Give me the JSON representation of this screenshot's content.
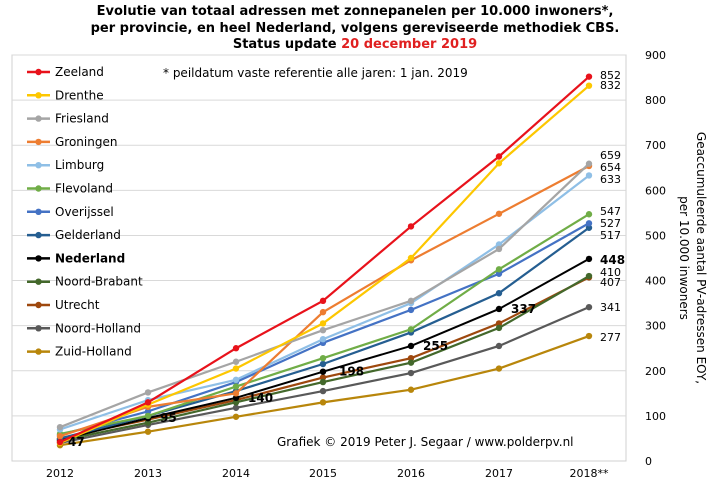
{
  "title": {
    "line1": "Evolutie van totaal adressen met zonnepanelen per 10.000 inwoners*,",
    "line2": "per provincie, en heel Nederland, volgens gereviseerde methodiek CBS.",
    "line3_prefix": "Status update ",
    "line3_date": "20 december 2019"
  },
  "note": "* peildatum  vaste referentie alle jaren: 1 jan. 2019",
  "credit": "Grafiek  © 2019  Peter J. Segaar / www.polderpv.nl",
  "chart_data": {
    "type": "line",
    "x": [
      "2012",
      "2013",
      "2014",
      "2015",
      "2016",
      "2017",
      "2018**"
    ],
    "ylim": [
      0,
      900
    ],
    "yticks": [
      0,
      100,
      200,
      300,
      400,
      500,
      600,
      700,
      800,
      900
    ],
    "ylabel_right": [
      "Geaccumuleerde  aantal PV-adressen EOY,",
      "per 10.000 inwoners"
    ],
    "grid": true,
    "legend_position": "left",
    "series": [
      {
        "name": "Zeeland",
        "color": "#e8121b",
        "values": [
          42,
          130,
          250,
          355,
          520,
          675,
          852
        ],
        "end_label": "852"
      },
      {
        "name": "Drenthe",
        "color": "#fdc700",
        "values": [
          40,
          125,
          205,
          305,
          450,
          660,
          832
        ],
        "end_label": "832"
      },
      {
        "name": "Friesland",
        "color": "#a5a5a5",
        "values": [
          75,
          152,
          220,
          290,
          355,
          470,
          659
        ],
        "end_label": "659"
      },
      {
        "name": "Groningen",
        "color": "#ed7d31",
        "values": [
          55,
          120,
          150,
          330,
          445,
          548,
          654
        ],
        "end_label": "654"
      },
      {
        "name": "Limburg",
        "color": "#8fbfe6",
        "values": [
          70,
          135,
          180,
          270,
          350,
          480,
          633
        ],
        "end_label": "633"
      },
      {
        "name": "Flevoland",
        "color": "#70ad47",
        "values": [
          60,
          100,
          165,
          228,
          292,
          425,
          547
        ],
        "end_label": "547"
      },
      {
        "name": "Overijssel",
        "color": "#4472c4",
        "values": [
          58,
          110,
          175,
          262,
          335,
          415,
          527
        ],
        "end_label": "527"
      },
      {
        "name": "Gelderland",
        "color": "#255e91",
        "values": [
          50,
          100,
          155,
          215,
          285,
          372,
          517
        ],
        "end_label": "517"
      },
      {
        "name": "Nederland",
        "color": "#000000",
        "values": [
          47,
          95,
          140,
          198,
          255,
          337,
          448
        ],
        "end_label": "448",
        "bold": true,
        "point_labels": [
          "47",
          "95",
          "140",
          "198",
          "255",
          "337",
          "448"
        ]
      },
      {
        "name": "Noord-Brabant",
        "color": "#43682b",
        "values": [
          45,
          85,
          130,
          175,
          218,
          295,
          410
        ],
        "end_label": "410"
      },
      {
        "name": "Utrecht",
        "color": "#9e480e",
        "values": [
          50,
          92,
          135,
          185,
          228,
          305,
          407
        ],
        "end_label": "407"
      },
      {
        "name": "Noord-Holland",
        "color": "#595959",
        "values": [
          40,
          80,
          118,
          155,
          195,
          255,
          341
        ],
        "end_label": "341"
      },
      {
        "name": "Zuid-Holland",
        "color": "#b8860b",
        "values": [
          35,
          65,
          98,
          130,
          158,
          205,
          277
        ],
        "end_label": "277"
      }
    ]
  }
}
